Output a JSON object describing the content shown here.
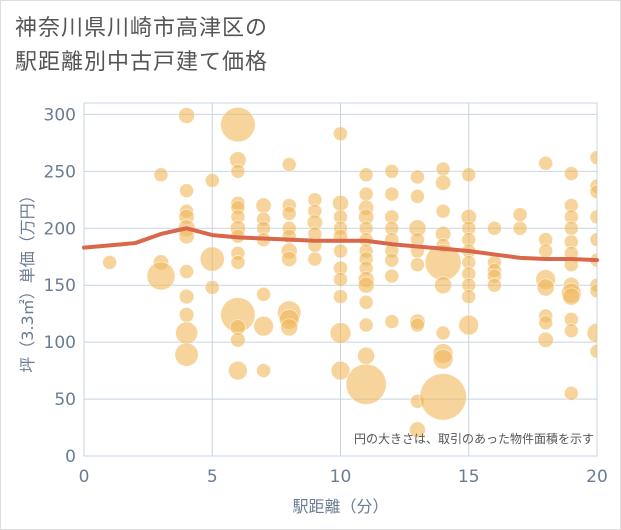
{
  "title_lines": [
    "神奈川県川崎市高津区の",
    "駅距離別中古戸建て価格"
  ],
  "chart_data": {
    "type": "scatter",
    "xlabel": "駅距離（分）",
    "ylabel": "坪（3.3㎡）単価（万円）",
    "xlim": [
      0,
      20
    ],
    "ylim": [
      0,
      310
    ],
    "x_ticks": [
      0,
      5,
      10,
      15,
      20
    ],
    "y_ticks": [
      0,
      50,
      100,
      150,
      200,
      250,
      300
    ],
    "grid": true,
    "annotation": "円の大きさは、取引のあった物件面積を示す",
    "colors": {
      "bubble": "#f0b75a",
      "trend": "#d9674a",
      "grid": "#c8d4e3",
      "axis_text": "#6b7c93"
    },
    "points": [
      {
        "x": 1,
        "y": 170,
        "s": 1
      },
      {
        "x": 3,
        "y": 247,
        "s": 1
      },
      {
        "x": 3,
        "y": 170,
        "s": 1.2
      },
      {
        "x": 3,
        "y": 158,
        "s": 4
      },
      {
        "x": 4,
        "y": 299,
        "s": 1.3
      },
      {
        "x": 4,
        "y": 233,
        "s": 1
      },
      {
        "x": 4,
        "y": 215,
        "s": 1
      },
      {
        "x": 4,
        "y": 210,
        "s": 1.2
      },
      {
        "x": 4,
        "y": 200,
        "s": 1.5
      },
      {
        "x": 4,
        "y": 193,
        "s": 1.2
      },
      {
        "x": 4,
        "y": 162,
        "s": 1
      },
      {
        "x": 4,
        "y": 140,
        "s": 1.1
      },
      {
        "x": 4,
        "y": 124,
        "s": 1.1
      },
      {
        "x": 4,
        "y": 108,
        "s": 2.5
      },
      {
        "x": 4,
        "y": 89,
        "s": 2.8
      },
      {
        "x": 5,
        "y": 242,
        "s": 1
      },
      {
        "x": 5,
        "y": 173,
        "s": 3
      },
      {
        "x": 5,
        "y": 148,
        "s": 1
      },
      {
        "x": 6,
        "y": 291,
        "s": 5.5
      },
      {
        "x": 6,
        "y": 260,
        "s": 1.4
      },
      {
        "x": 6,
        "y": 250,
        "s": 1
      },
      {
        "x": 6,
        "y": 222,
        "s": 1
      },
      {
        "x": 6,
        "y": 218,
        "s": 1
      },
      {
        "x": 6,
        "y": 210,
        "s": 1
      },
      {
        "x": 6,
        "y": 200,
        "s": 1.2
      },
      {
        "x": 6,
        "y": 193,
        "s": 1
      },
      {
        "x": 6,
        "y": 178,
        "s": 1
      },
      {
        "x": 6,
        "y": 170,
        "s": 1
      },
      {
        "x": 6,
        "y": 124,
        "s": 5.5
      },
      {
        "x": 6,
        "y": 113,
        "s": 1.2
      },
      {
        "x": 6,
        "y": 102,
        "s": 1.1
      },
      {
        "x": 6,
        "y": 75,
        "s": 1.8
      },
      {
        "x": 7,
        "y": 220,
        "s": 1.2
      },
      {
        "x": 7,
        "y": 208,
        "s": 1
      },
      {
        "x": 7,
        "y": 200,
        "s": 1
      },
      {
        "x": 7,
        "y": 190,
        "s": 1
      },
      {
        "x": 7,
        "y": 142,
        "s": 1
      },
      {
        "x": 7,
        "y": 114,
        "s": 2
      },
      {
        "x": 7,
        "y": 75,
        "s": 1
      },
      {
        "x": 8,
        "y": 256,
        "s": 1
      },
      {
        "x": 8,
        "y": 220,
        "s": 1
      },
      {
        "x": 8,
        "y": 213,
        "s": 1
      },
      {
        "x": 8,
        "y": 200,
        "s": 1
      },
      {
        "x": 8,
        "y": 193,
        "s": 1
      },
      {
        "x": 8,
        "y": 180,
        "s": 1.3
      },
      {
        "x": 8,
        "y": 173,
        "s": 1.2
      },
      {
        "x": 8,
        "y": 126,
        "s": 2.8
      },
      {
        "x": 8,
        "y": 120,
        "s": 2
      },
      {
        "x": 8,
        "y": 113,
        "s": 1.5
      },
      {
        "x": 9,
        "y": 225,
        "s": 1
      },
      {
        "x": 9,
        "y": 215,
        "s": 1
      },
      {
        "x": 9,
        "y": 205,
        "s": 1.2
      },
      {
        "x": 9,
        "y": 195,
        "s": 1
      },
      {
        "x": 9,
        "y": 185,
        "s": 1
      },
      {
        "x": 9,
        "y": 173,
        "s": 1
      },
      {
        "x": 10,
        "y": 283,
        "s": 1
      },
      {
        "x": 10,
        "y": 222,
        "s": 1.3
      },
      {
        "x": 10,
        "y": 210,
        "s": 1
      },
      {
        "x": 10,
        "y": 200,
        "s": 1
      },
      {
        "x": 10,
        "y": 193,
        "s": 1
      },
      {
        "x": 10,
        "y": 180,
        "s": 1
      },
      {
        "x": 10,
        "y": 165,
        "s": 1
      },
      {
        "x": 10,
        "y": 155,
        "s": 1
      },
      {
        "x": 10,
        "y": 140,
        "s": 1
      },
      {
        "x": 10,
        "y": 108,
        "s": 2.2
      },
      {
        "x": 10,
        "y": 75,
        "s": 1.8
      },
      {
        "x": 11,
        "y": 247,
        "s": 1
      },
      {
        "x": 11,
        "y": 230,
        "s": 1
      },
      {
        "x": 11,
        "y": 218,
        "s": 1.2
      },
      {
        "x": 11,
        "y": 210,
        "s": 1.2
      },
      {
        "x": 11,
        "y": 200,
        "s": 1
      },
      {
        "x": 11,
        "y": 190,
        "s": 1
      },
      {
        "x": 11,
        "y": 180,
        "s": 1
      },
      {
        "x": 11,
        "y": 173,
        "s": 1
      },
      {
        "x": 11,
        "y": 165,
        "s": 1
      },
      {
        "x": 11,
        "y": 155,
        "s": 1.3
      },
      {
        "x": 11,
        "y": 150,
        "s": 1.3
      },
      {
        "x": 11,
        "y": 135,
        "s": 1
      },
      {
        "x": 11,
        "y": 115,
        "s": 1
      },
      {
        "x": 11,
        "y": 88,
        "s": 1.5
      },
      {
        "x": 11,
        "y": 63,
        "s": 7.5
      },
      {
        "x": 12,
        "y": 250,
        "s": 1
      },
      {
        "x": 12,
        "y": 230,
        "s": 1
      },
      {
        "x": 12,
        "y": 210,
        "s": 1
      },
      {
        "x": 12,
        "y": 200,
        "s": 1
      },
      {
        "x": 12,
        "y": 190,
        "s": 1
      },
      {
        "x": 12,
        "y": 180,
        "s": 1
      },
      {
        "x": 12,
        "y": 172,
        "s": 1
      },
      {
        "x": 12,
        "y": 158,
        "s": 1
      },
      {
        "x": 12,
        "y": 118,
        "s": 1
      },
      {
        "x": 13,
        "y": 245,
        "s": 1
      },
      {
        "x": 13,
        "y": 228,
        "s": 1
      },
      {
        "x": 13,
        "y": 200,
        "s": 1.5
      },
      {
        "x": 13,
        "y": 190,
        "s": 1
      },
      {
        "x": 13,
        "y": 180,
        "s": 1
      },
      {
        "x": 13,
        "y": 168,
        "s": 1
      },
      {
        "x": 13,
        "y": 118,
        "s": 1.2
      },
      {
        "x": 13,
        "y": 115,
        "s": 1
      },
      {
        "x": 13,
        "y": 48,
        "s": 1
      },
      {
        "x": 13,
        "y": 23,
        "s": 1.3
      },
      {
        "x": 14,
        "y": 252,
        "s": 1
      },
      {
        "x": 14,
        "y": 240,
        "s": 1.2
      },
      {
        "x": 14,
        "y": 215,
        "s": 1
      },
      {
        "x": 14,
        "y": 195,
        "s": 1.2
      },
      {
        "x": 14,
        "y": 185,
        "s": 1
      },
      {
        "x": 14,
        "y": 170,
        "s": 6
      },
      {
        "x": 14,
        "y": 150,
        "s": 1.5
      },
      {
        "x": 14,
        "y": 108,
        "s": 1
      },
      {
        "x": 14,
        "y": 90,
        "s": 2
      },
      {
        "x": 14,
        "y": 85,
        "s": 2
      },
      {
        "x": 14,
        "y": 52,
        "s": 10
      },
      {
        "x": 15,
        "y": 247,
        "s": 1
      },
      {
        "x": 15,
        "y": 210,
        "s": 1.2
      },
      {
        "x": 15,
        "y": 200,
        "s": 1
      },
      {
        "x": 15,
        "y": 190,
        "s": 1
      },
      {
        "x": 15,
        "y": 180,
        "s": 1
      },
      {
        "x": 15,
        "y": 170,
        "s": 1
      },
      {
        "x": 15,
        "y": 160,
        "s": 1
      },
      {
        "x": 15,
        "y": 150,
        "s": 1
      },
      {
        "x": 15,
        "y": 140,
        "s": 1
      },
      {
        "x": 15,
        "y": 115,
        "s": 2
      },
      {
        "x": 16,
        "y": 200,
        "s": 1
      },
      {
        "x": 16,
        "y": 170,
        "s": 1
      },
      {
        "x": 16,
        "y": 163,
        "s": 1
      },
      {
        "x": 16,
        "y": 158,
        "s": 1
      },
      {
        "x": 16,
        "y": 150,
        "s": 1
      },
      {
        "x": 17,
        "y": 212,
        "s": 1
      },
      {
        "x": 17,
        "y": 200,
        "s": 1
      },
      {
        "x": 18,
        "y": 257,
        "s": 1
      },
      {
        "x": 18,
        "y": 190,
        "s": 1
      },
      {
        "x": 18,
        "y": 180,
        "s": 1
      },
      {
        "x": 18,
        "y": 155,
        "s": 2
      },
      {
        "x": 18,
        "y": 148,
        "s": 1.5
      },
      {
        "x": 18,
        "y": 123,
        "s": 1
      },
      {
        "x": 18,
        "y": 117,
        "s": 1
      },
      {
        "x": 18,
        "y": 102,
        "s": 1.2
      },
      {
        "x": 19,
        "y": 248,
        "s": 1
      },
      {
        "x": 19,
        "y": 220,
        "s": 1
      },
      {
        "x": 19,
        "y": 210,
        "s": 1
      },
      {
        "x": 19,
        "y": 200,
        "s": 1
      },
      {
        "x": 19,
        "y": 188,
        "s": 1
      },
      {
        "x": 19,
        "y": 178,
        "s": 1
      },
      {
        "x": 19,
        "y": 168,
        "s": 1
      },
      {
        "x": 19,
        "y": 150,
        "s": 1.3
      },
      {
        "x": 19,
        "y": 143,
        "s": 2
      },
      {
        "x": 19,
        "y": 140,
        "s": 1.5
      },
      {
        "x": 19,
        "y": 120,
        "s": 1
      },
      {
        "x": 19,
        "y": 110,
        "s": 1
      },
      {
        "x": 19,
        "y": 55,
        "s": 1
      },
      {
        "x": 20,
        "y": 262,
        "s": 1
      },
      {
        "x": 20,
        "y": 237,
        "s": 1
      },
      {
        "x": 20,
        "y": 232,
        "s": 1
      },
      {
        "x": 20,
        "y": 210,
        "s": 1
      },
      {
        "x": 20,
        "y": 190,
        "s": 1
      },
      {
        "x": 20,
        "y": 172,
        "s": 1
      },
      {
        "x": 20,
        "y": 150,
        "s": 1
      },
      {
        "x": 20,
        "y": 145,
        "s": 1
      },
      {
        "x": 20,
        "y": 108,
        "s": 2
      },
      {
        "x": 20,
        "y": 92,
        "s": 1
      }
    ],
    "trend": {
      "x": [
        0,
        1,
        2,
        3,
        4,
        5,
        6,
        7,
        8,
        9,
        10,
        11,
        12,
        13,
        14,
        15,
        16,
        17,
        18,
        19,
        20
      ],
      "y": [
        183,
        185,
        187,
        195,
        200,
        194,
        192,
        191,
        190,
        189,
        189,
        189,
        186,
        184,
        182,
        180,
        177,
        174,
        173,
        173,
        172
      ]
    }
  }
}
